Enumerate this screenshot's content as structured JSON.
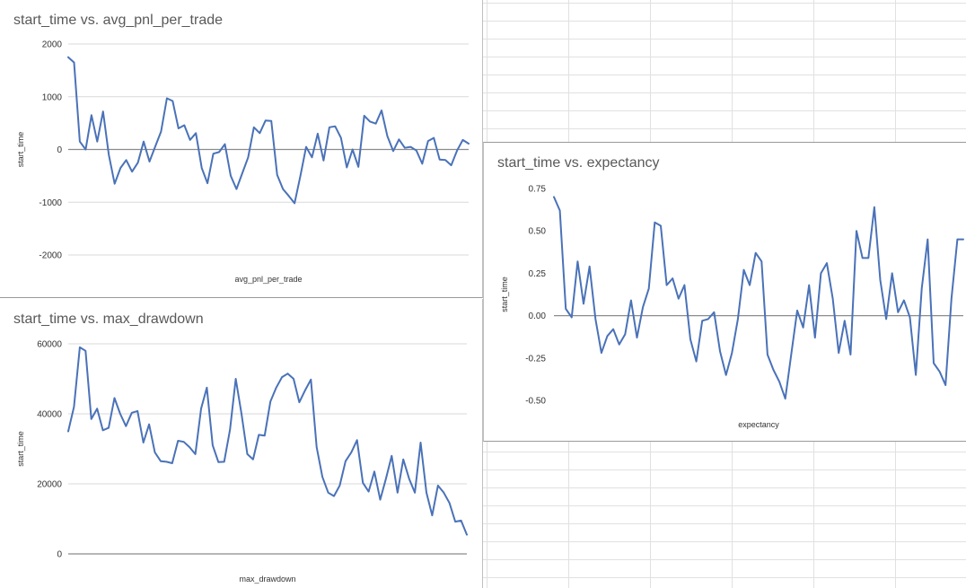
{
  "colors": {
    "line": "#4a72b8",
    "grid": "#d9d9d9",
    "zero": "#8c8c8c",
    "title": "#595959"
  },
  "chart_data": [
    {
      "id": "c1",
      "type": "line",
      "title": "start_time vs. avg_pnl_per_trade",
      "xlabel": "avg_pnl_per_trade",
      "ylabel": "start_time",
      "ylim": [
        -2000,
        2000
      ],
      "yticks": [
        2000,
        1000,
        0,
        -1000,
        -2000
      ],
      "ytick_labels": [
        "2000",
        "1000",
        "0",
        "-1000",
        "-2000"
      ],
      "grid": true,
      "series": [
        {
          "values": [
            1750,
            1650,
            150,
            0,
            650,
            150,
            720,
            -100,
            -650,
            -350,
            -200,
            -420,
            -250,
            150,
            -230,
            60,
            340,
            970,
            920,
            400,
            460,
            180,
            310,
            -350,
            -640,
            -80,
            -50,
            100,
            -500,
            -750,
            -450,
            -150,
            420,
            310,
            550,
            540,
            -480,
            -750,
            -880,
            -1020,
            -500,
            50,
            -150,
            300,
            -210,
            420,
            440,
            220,
            -340,
            0,
            -330,
            640,
            530,
            490,
            740,
            250,
            -30,
            190,
            30,
            50,
            -20,
            -270,
            160,
            220,
            -190,
            -200,
            -300,
            -20,
            180,
            110
          ]
        }
      ]
    },
    {
      "id": "c2",
      "type": "line",
      "title": "start_time vs. max_drawdown",
      "xlabel": "max_drawdown",
      "ylabel": "start_time",
      "ylim": [
        0,
        60000
      ],
      "yticks": [
        60000,
        40000,
        20000,
        0
      ],
      "ytick_labels": [
        "60000",
        "40000",
        "20000",
        "0"
      ],
      "grid": true,
      "series": [
        {
          "values": [
            35000,
            42000,
            59000,
            58000,
            38500,
            41500,
            35300,
            36000,
            44500,
            40000,
            36500,
            40300,
            40800,
            31800,
            37000,
            29000,
            26500,
            26300,
            25900,
            32300,
            32000,
            30500,
            28500,
            41500,
            47500,
            31000,
            26200,
            26300,
            35500,
            50000,
            40000,
            28500,
            27000,
            34000,
            33800,
            43500,
            47500,
            50500,
            51500,
            50000,
            43300,
            46700,
            49800,
            30500,
            22000,
            17500,
            16500,
            19500,
            26500,
            29000,
            32500,
            20300,
            17800,
            23500,
            15500,
            21500,
            28000,
            17500,
            27000,
            21500,
            17500,
            31800,
            17500,
            11000,
            19500,
            17500,
            14500,
            9200,
            9500,
            5500
          ]
        }
      ]
    },
    {
      "id": "c3",
      "type": "line",
      "title": "start_time vs. expectancy",
      "xlabel": "expectancy",
      "ylabel": "start_time",
      "ylim": [
        -0.5,
        0.75
      ],
      "yticks": [
        0.75,
        0.5,
        0.25,
        0,
        -0.25,
        -0.5
      ],
      "ytick_labels": [
        "0.75",
        "0.50",
        "0.25",
        "0.00",
        "-0.25",
        "-0.50"
      ],
      "grid": false,
      "series": [
        {
          "values": [
            0.7,
            0.62,
            0.04,
            -0.01,
            0.32,
            0.07,
            0.29,
            -0.02,
            -0.22,
            -0.12,
            -0.08,
            -0.17,
            -0.11,
            0.09,
            -0.13,
            0.05,
            0.16,
            0.55,
            0.53,
            0.18,
            0.22,
            0.1,
            0.18,
            -0.14,
            -0.27,
            -0.03,
            -0.02,
            0.02,
            -0.21,
            -0.35,
            -0.22,
            -0.02,
            0.27,
            0.18,
            0.37,
            0.32,
            -0.23,
            -0.32,
            -0.39,
            -0.49,
            -0.23,
            0.03,
            -0.07,
            0.18,
            -0.13,
            0.25,
            0.31,
            0.1,
            -0.22,
            -0.03,
            -0.23,
            0.5,
            0.34,
            0.34,
            0.64,
            0.21,
            -0.02,
            0.25,
            0.02,
            0.09,
            -0.01,
            -0.35,
            0.16,
            0.45,
            -0.28,
            -0.33,
            -0.41,
            0.1,
            0.45,
            0.45
          ]
        }
      ]
    }
  ]
}
